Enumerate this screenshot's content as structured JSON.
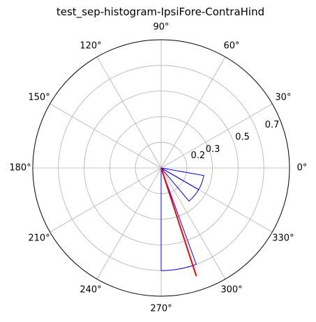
{
  "chart_data": {
    "type": "polar-histogram",
    "title": "test_sep-histogram-IpsiFore-ContraHind",
    "theta_unit": "degrees",
    "theta_ticks": [
      {
        "deg": 0,
        "label": "0°"
      },
      {
        "deg": 30,
        "label": "30°"
      },
      {
        "deg": 60,
        "label": "60°"
      },
      {
        "deg": 90,
        "label": "90°"
      },
      {
        "deg": 120,
        "label": "120°"
      },
      {
        "deg": 150,
        "label": "150°"
      },
      {
        "deg": 180,
        "label": "180°"
      },
      {
        "deg": 210,
        "label": "210°"
      },
      {
        "deg": 240,
        "label": "240°"
      },
      {
        "deg": 270,
        "label": "270°"
      },
      {
        "deg": 300,
        "label": "300°"
      },
      {
        "deg": 330,
        "label": "330°"
      }
    ],
    "r_max": 0.8,
    "r_gridlines": [
      0.16,
      0.32,
      0.48,
      0.64
    ],
    "r_tick_labels": [
      {
        "value": 0.2,
        "label": "0.2"
      },
      {
        "value": 0.3,
        "label": "0.3"
      },
      {
        "value": 0.5,
        "label": "0.5"
      },
      {
        "value": 0.7,
        "label": "0.7"
      }
    ],
    "grid": true,
    "histogram_bins": [
      {
        "theta_start_deg": 270,
        "theta_end_deg": 290,
        "value": 0.64
      },
      {
        "theta_start_deg": 310,
        "theta_end_deg": 330,
        "value": 0.27
      },
      {
        "theta_start_deg": 330,
        "theta_end_deg": 350,
        "value": 0.27
      }
    ],
    "mean_vector": {
      "angle_deg": 288,
      "length": 0.71
    },
    "colors": {
      "histogram": "#0000ff",
      "mean_vector": "#ff0000",
      "grid": "#b0b0b0",
      "frame": "#000000"
    }
  }
}
